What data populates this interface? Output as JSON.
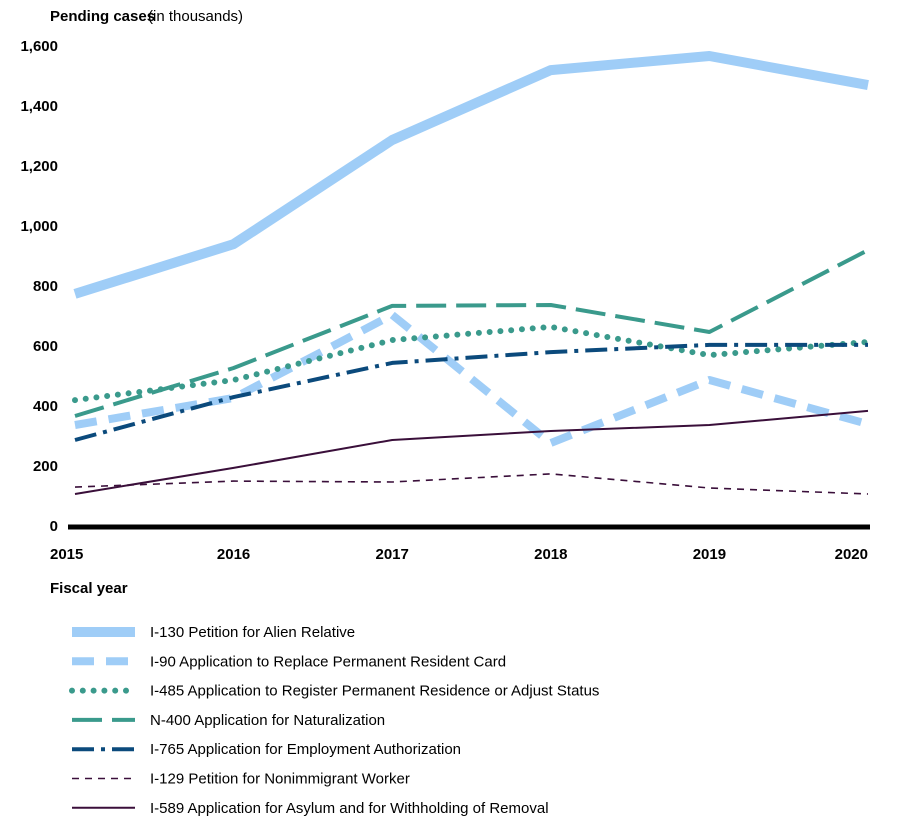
{
  "chart_data": {
    "type": "line",
    "title": "Pending cases",
    "subtitle": "(in thousands)",
    "x_label": "Fiscal year",
    "x": [
      2015,
      2016,
      2017,
      2018,
      2019,
      2020
    ],
    "xlim": [
      2015,
      2020
    ],
    "xticks": [
      2015,
      2016,
      2017,
      2018,
      2019,
      2020
    ],
    "ylim": [
      0,
      1600
    ],
    "yticks": [
      0,
      {
        "value": 200,
        "label": "200"
      },
      400,
      600,
      800,
      {
        "value": 1000,
        "label": "1,000"
      },
      {
        "value": 1200,
        "label": "1,200"
      },
      {
        "value": 1400,
        "label": "1,400"
      },
      {
        "value": 1600,
        "label": "1,600"
      }
    ],
    "grid": false,
    "series": [
      {
        "name": "I-130 Petition for Alien Relative",
        "color": "#9fcdf7",
        "line_style": "solid",
        "values": [
          777,
          943,
          1290,
          1523,
          1570,
          1473
        ]
      },
      {
        "name": "I-90 Application to Replace Permanent Resident Card",
        "color": "#9fcdf7",
        "line_style": "dashed",
        "values": [
          340,
          430,
          707,
          280,
          490,
          343
        ]
      },
      {
        "name": "I-485 Application to Register Permanent Residence or Adjust Status",
        "color": "#3a9a8c",
        "line_style": "dotted",
        "values": [
          423,
          490,
          623,
          667,
          573,
          617
        ]
      },
      {
        "name": "N-400 Application for Naturalization",
        "color": "#3a9a8c",
        "line_style": "dashed",
        "values": [
          370,
          530,
          737,
          740,
          650,
          923
        ]
      },
      {
        "name": "I-765 Application for Employment Authorization",
        "color": "#0b4a7c",
        "line_style": "dashdot",
        "values": [
          290,
          433,
          547,
          583,
          607,
          607
        ]
      },
      {
        "name": "I-129 Petition for Nonimmigrant Worker",
        "color": "#3a0f3a",
        "line_style": "dashed",
        "values": [
          133,
          153,
          150,
          177,
          130,
          110
        ]
      },
      {
        "name": "I-589 Application for Asylum and for Withholding of Removal",
        "color": "#3a0f3a",
        "line_style": "solid",
        "values": [
          110,
          197,
          290,
          320,
          340,
          387
        ]
      }
    ]
  }
}
